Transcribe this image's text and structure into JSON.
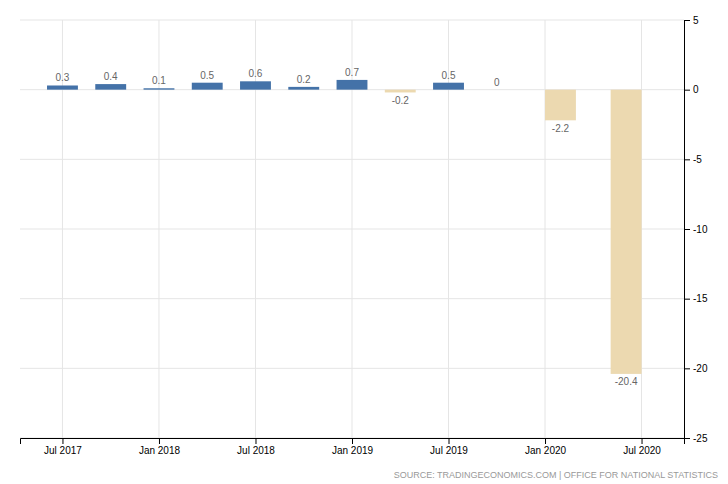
{
  "chart_data": {
    "type": "bar",
    "x": [
      2017.5,
      2017.75,
      2018.0,
      2018.25,
      2018.5,
      2018.75,
      2019.0,
      2019.25,
      2019.5,
      2019.75,
      2020.08,
      2020.42
    ],
    "values": [
      0.3,
      0.4,
      0.1,
      0.5,
      0.6,
      0.2,
      0.7,
      -0.2,
      0.5,
      0.0,
      -2.2,
      -20.4
    ],
    "colors": [
      "#4472a8",
      "#4472a8",
      "#4472a8",
      "#4472a8",
      "#4472a8",
      "#4472a8",
      "#4472a8",
      "#ecd9b0",
      "#4472a8",
      "#4472a8",
      "#ecd9b0",
      "#ecd9b0"
    ],
    "data_labels": true,
    "xlim": [
      2017.28,
      2020.72
    ],
    "xticks": [
      {
        "value": 2017.5,
        "label": "Jul 2017"
      },
      {
        "value": 2018.0,
        "label": "Jan 2018"
      },
      {
        "value": 2018.5,
        "label": "Jul 2018"
      },
      {
        "value": 2019.0,
        "label": "Jan 2019"
      },
      {
        "value": 2019.5,
        "label": "Jul 2019"
      },
      {
        "value": 2020.0,
        "label": "Jan 2020"
      },
      {
        "value": 2020.5,
        "label": "Jul 2020"
      }
    ],
    "ylim": [
      -25,
      5
    ],
    "yticks": [
      5,
      0,
      -5,
      -10,
      -15,
      -20,
      -25
    ],
    "grid": true,
    "annotations": [
      "SOURCE: TRADINGECONOMICS.COM | OFFICE FOR NATIONAL STATISTICS"
    ]
  }
}
